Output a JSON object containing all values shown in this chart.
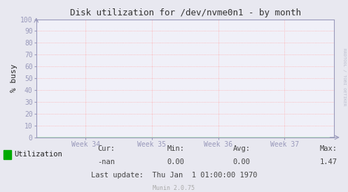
{
  "title": "Disk utilization for /dev/nvme0n1 - by month",
  "ylabel": "% busy",
  "bg_color": "#e8e8f0",
  "plot_bg_color": "#f0f0f8",
  "grid_color": "#ffaaaa",
  "border_color": "#9999bb",
  "yticks": [
    0,
    10,
    20,
    30,
    40,
    50,
    60,
    70,
    80,
    90,
    100
  ],
  "ylim": [
    0,
    100
  ],
  "xtick_labels": [
    "Week 34",
    "Week 35",
    "Week 36",
    "Week 37"
  ],
  "legend_label": "Utilization",
  "legend_color": "#00aa00",
  "stats_cur": "-nan",
  "stats_min": "0.00",
  "stats_avg": "0.00",
  "stats_max": "1.47",
  "last_update": "Last update:  Thu Jan  1 01:00:00 1970",
  "munin_version": "Munin 2.0.75",
  "watermark": "RRDTOOL / TOBI OETIKER",
  "line_color": "#00cc00",
  "arrow_color": "#9999bb",
  "title_color": "#333333",
  "text_color": "#222222",
  "stats_text_color": "#444444",
  "watermark_color": "#bbbbcc"
}
